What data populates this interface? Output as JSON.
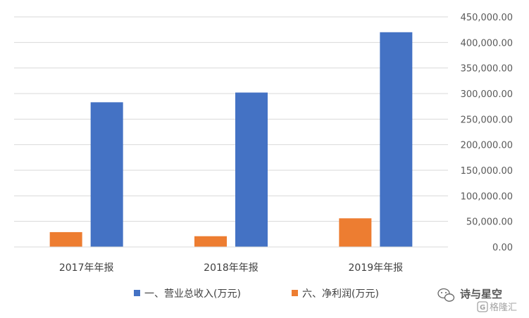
{
  "chart_data": {
    "type": "bar",
    "categories": [
      "2017年年报",
      "2018年年报",
      "2019年年报"
    ],
    "series": [
      {
        "name": "六、净利润(万元)",
        "color": "#ED7D31",
        "values": [
          29000,
          21000,
          56000
        ]
      },
      {
        "name": "一、营业总收入(万元)",
        "color": "#4472C4",
        "values": [
          283000,
          302000,
          420000
        ]
      }
    ],
    "ylim": [
      0,
      450000
    ],
    "yticks": [
      0,
      50000,
      100000,
      150000,
      200000,
      250000,
      300000,
      350000,
      400000,
      450000
    ],
    "ytick_labels": [
      "0.00",
      "50,000.00",
      "100,000.00",
      "150,000.00",
      "200,000.00",
      "250,000.00",
      "300,000.00",
      "350,000.00",
      "400,000.00",
      "450,000.00"
    ],
    "y_axis_side": "right",
    "grid": true,
    "legend_position": "bottom",
    "legend": [
      "一、营业总收入(万元)",
      "六、净利润(万元)"
    ],
    "gridline_color": "#D9D9D9"
  },
  "watermark": {
    "channel_name": "诗与星空",
    "logo_text": "格隆汇",
    "icon": "wechat-icon"
  }
}
